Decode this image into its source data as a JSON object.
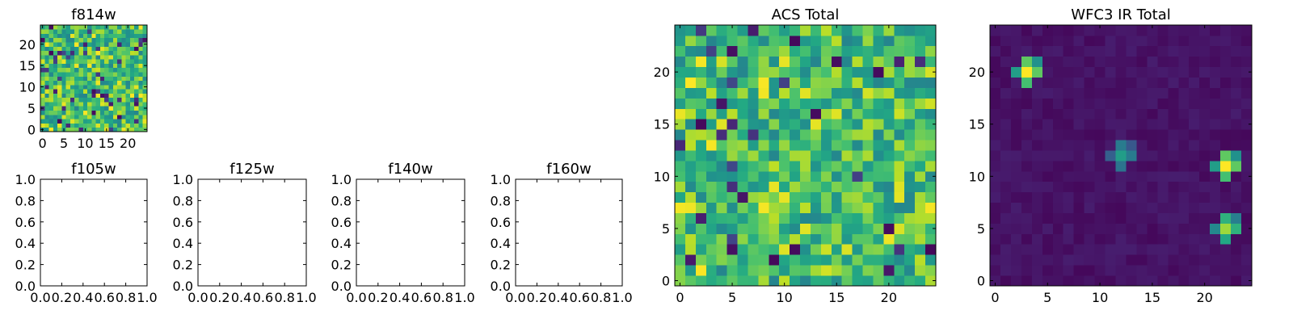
{
  "chart_data": [
    {
      "type": "heatmap",
      "title": "f814w",
      "xlabel": "",
      "ylabel": "",
      "xlim": [
        -0.5,
        24.5
      ],
      "ylim": [
        -0.5,
        24.5
      ],
      "xticks": [
        "0",
        "5",
        "10",
        "15",
        "20"
      ],
      "yticks": [
        "0",
        "5",
        "10",
        "15",
        "20"
      ],
      "grid_size": 25,
      "colormap": "viridis",
      "pattern": "noise",
      "seed": 814
    },
    {
      "type": "empty",
      "title": "f105w",
      "xlim": [
        0,
        1
      ],
      "ylim": [
        0,
        1
      ],
      "xticks": [
        "0.0",
        "0.2",
        "0.4",
        "0.6",
        "0.8",
        "1.0"
      ],
      "yticks": [
        "0.0",
        "0.2",
        "0.4",
        "0.6",
        "0.8",
        "1.0"
      ]
    },
    {
      "type": "empty",
      "title": "f125w",
      "xlim": [
        0,
        1
      ],
      "ylim": [
        0,
        1
      ],
      "xticks": [
        "0.0",
        "0.2",
        "0.4",
        "0.6",
        "0.8",
        "1.0"
      ],
      "yticks": [
        "0.0",
        "0.2",
        "0.4",
        "0.6",
        "0.8",
        "1.0"
      ]
    },
    {
      "type": "empty",
      "title": "f140w",
      "xlim": [
        0,
        1
      ],
      "ylim": [
        0,
        1
      ],
      "xticks": [
        "0.0",
        "0.2",
        "0.4",
        "0.6",
        "0.8",
        "1.0"
      ],
      "yticks": [
        "0.0",
        "0.2",
        "0.4",
        "0.6",
        "0.8",
        "1.0"
      ]
    },
    {
      "type": "empty",
      "title": "f160w",
      "xlim": [
        0,
        1
      ],
      "ylim": [
        0,
        1
      ],
      "xticks": [
        "0.0",
        "0.2",
        "0.4",
        "0.6",
        "0.8",
        "1.0"
      ],
      "yticks": [
        "0.0",
        "0.2",
        "0.4",
        "0.6",
        "0.8",
        "1.0"
      ]
    },
    {
      "type": "heatmap",
      "title": "ACS Total",
      "xlim": [
        -0.5,
        24.5
      ],
      "ylim": [
        -0.5,
        24.5
      ],
      "xticks": [
        "0",
        "5",
        "10",
        "15",
        "20"
      ],
      "yticks": [
        "0",
        "5",
        "10",
        "15",
        "20"
      ],
      "grid_size": 25,
      "colormap": "viridis",
      "pattern": "noise",
      "seed": 2024
    },
    {
      "type": "heatmap",
      "title": "WFC3 IR Total",
      "xlim": [
        -0.5,
        24.5
      ],
      "ylim": [
        -0.5,
        24.5
      ],
      "xticks": [
        "0",
        "5",
        "10",
        "15",
        "20"
      ],
      "yticks": [
        "0",
        "5",
        "10",
        "15",
        "20"
      ],
      "grid_size": 25,
      "colormap": "viridis",
      "pattern": "sources",
      "seed": 3,
      "sources": [
        {
          "x": 3,
          "y": 20,
          "peak": 1.0
        },
        {
          "x": 12,
          "y": 12,
          "peak": 0.55
        },
        {
          "x": 22,
          "y": 11,
          "peak": 1.0
        },
        {
          "x": 22,
          "y": 5,
          "peak": 0.85
        }
      ]
    }
  ]
}
